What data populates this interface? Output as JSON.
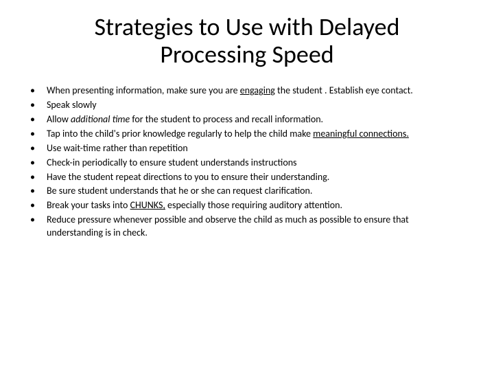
{
  "title": "Strategies to Use with Delayed Processing Speed",
  "title_fontsize": 36,
  "body_fontsize": 14,
  "text_color": "#000000",
  "background_color": "#ffffff",
  "bullet_marker": "•",
  "bullets": [
    {
      "segments": [
        {
          "text": "When presenting information, make sure you are "
        },
        {
          "text": "engaging",
          "underline": true
        },
        {
          "text": " the student . Establish eye contact."
        }
      ]
    },
    {
      "segments": [
        {
          "text": "Speak slowly"
        }
      ]
    },
    {
      "segments": [
        {
          "text": "Allow "
        },
        {
          "text": "additional time",
          "italic": true
        },
        {
          "text": " for the student to process and recall information."
        }
      ]
    },
    {
      "segments": [
        {
          "text": "Tap into the child's prior knowledge regularly to help the child make "
        },
        {
          "text": "meaningful connections.",
          "underline": true
        }
      ]
    },
    {
      "segments": [
        {
          "text": "Use wait-time rather than repetition"
        }
      ]
    },
    {
      "segments": [
        {
          "text": "Check-in periodically to ensure student understands instructions"
        }
      ]
    },
    {
      "segments": [
        {
          "text": "Have the student repeat directions to you to ensure their understanding."
        }
      ]
    },
    {
      "segments": [
        {
          "text": "Be sure student understands that he or she can request clarification."
        }
      ]
    },
    {
      "segments": [
        {
          "text": "Break your tasks into "
        },
        {
          "text": "CHUNKS,",
          "underline": true
        },
        {
          "text": " especially those requiring auditory attention."
        }
      ]
    },
    {
      "segments": [
        {
          "text": "Reduce pressure whenever possible and observe the child as much as possible to ensure that understanding is in check."
        }
      ]
    }
  ]
}
